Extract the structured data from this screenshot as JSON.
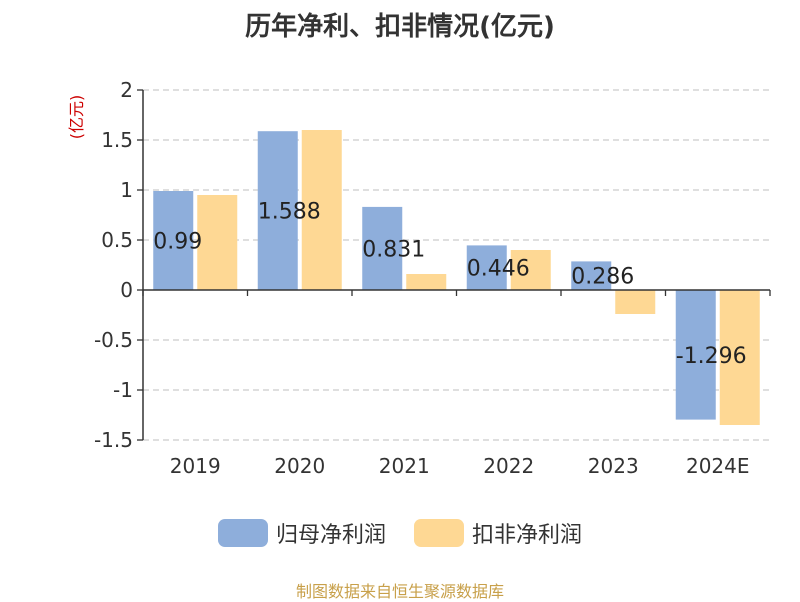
{
  "chart_data": {
    "type": "bar",
    "title": "历年净利、扣非情况(亿元)",
    "ylabel": "(亿元)",
    "categories": [
      "2019",
      "2020",
      "2021",
      "2022",
      "2023",
      "2024E"
    ],
    "series": [
      {
        "name": "归母净利润",
        "color": "#8eaedb",
        "values": [
          0.99,
          1.588,
          0.831,
          0.446,
          0.286,
          -1.296
        ]
      },
      {
        "name": "扣非净利润",
        "color": "#fed894",
        "values": [
          0.95,
          1.6,
          0.16,
          0.4,
          -0.24,
          -1.35
        ]
      }
    ],
    "data_labels": [
      "0.99",
      "1.588",
      "0.831",
      "0.446",
      "0.286",
      "-1.296"
    ],
    "ylim": [
      -1.5,
      2
    ],
    "yticks": [
      2,
      1.5,
      1,
      0.5,
      0,
      -0.5,
      -1,
      -1.5
    ],
    "ytick_labels": [
      "2",
      "1.5",
      "1",
      "0.5",
      "0",
      "-0.5",
      "-1",
      "-1.5"
    ],
    "grid": true,
    "legend_position": "bottom"
  },
  "source_note": "制图数据来自恒生聚源数据库",
  "colors": {
    "axis": "#333333",
    "grid": "#cccccc",
    "ylabel": "#cc0000",
    "source": "#c8a04a"
  }
}
